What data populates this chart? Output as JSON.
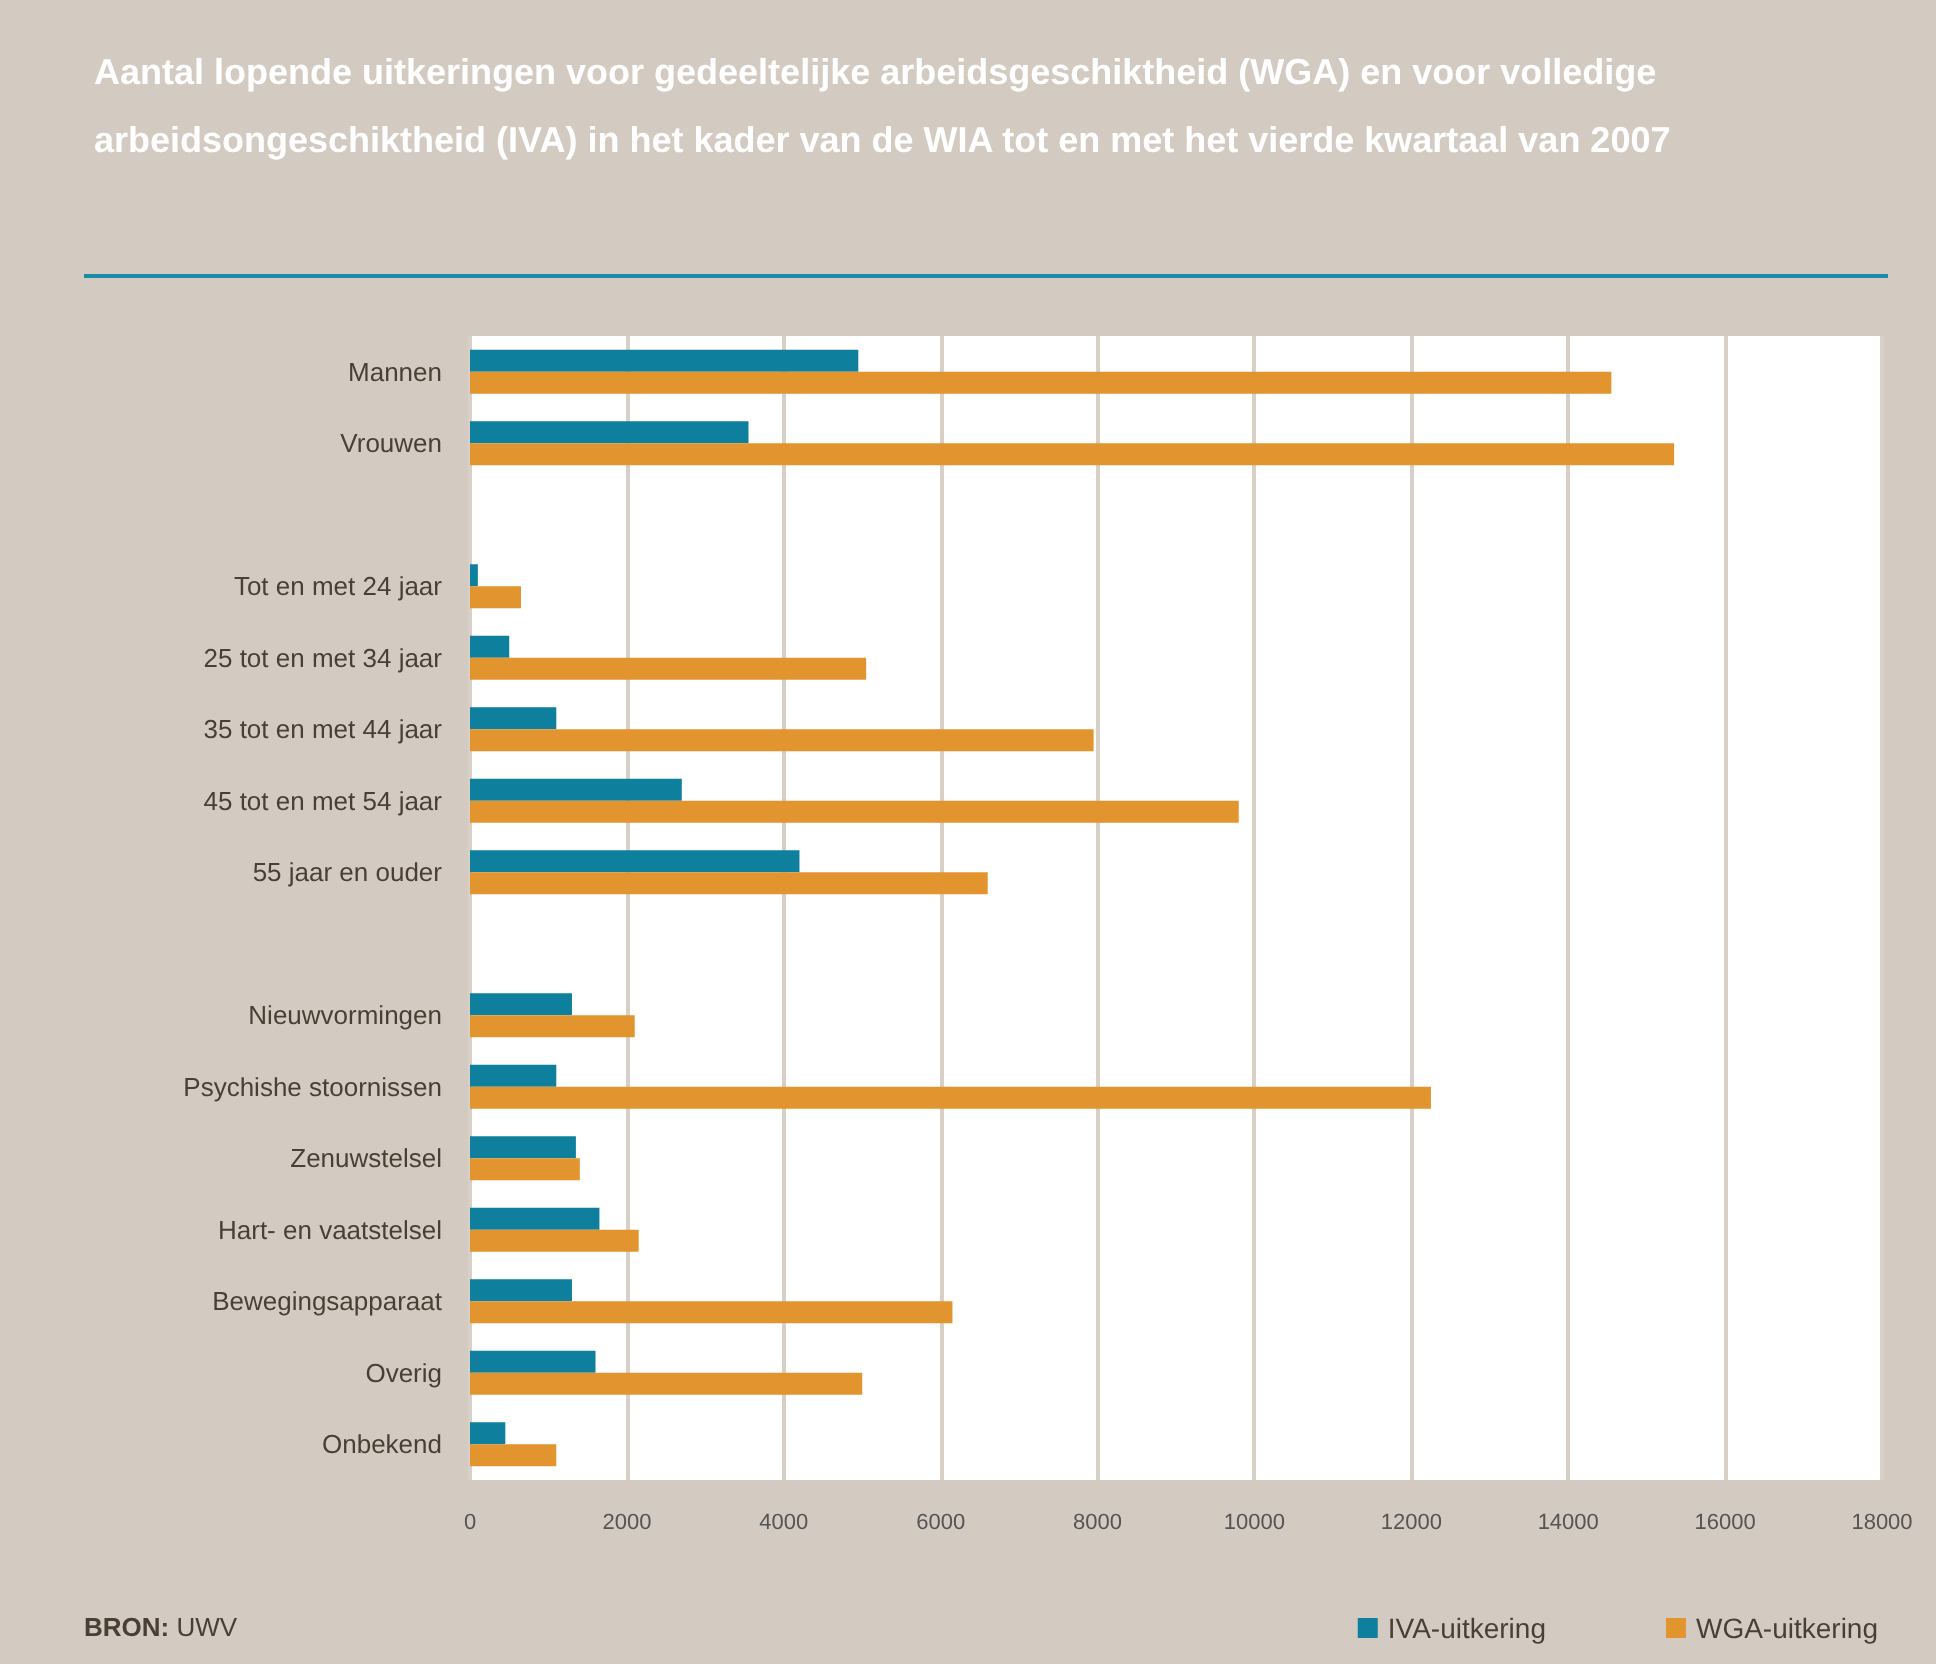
{
  "chart_data": {
    "type": "bar",
    "orientation": "horizontal",
    "title": "Aantal lopende uitkeringen voor gedeeltelijke arbeidsgeschiktheid (WGA) en voor volledige arbeidsongeschiktheid (IVA) in het kader van de WIA tot en met het vierde kwartaal van 2007",
    "categories": [
      "Mannen",
      "Vrouwen",
      null,
      "Tot en met 24 jaar",
      "25 tot en met 34 jaar",
      "35 tot en met 44 jaar",
      "45 tot en met 54 jaar",
      "55 jaar en ouder",
      null,
      "Nieuwvormingen",
      "Psychishe stoornissen",
      "Zenuwstelsel",
      "Hart- en vaatstelsel",
      "Bewegingsapparaat",
      "Overig",
      "Onbekend"
    ],
    "series": [
      {
        "name": "IVA-uitkering",
        "color": "#0e7f9c",
        "values": [
          4950,
          3550,
          null,
          100,
          500,
          1100,
          2700,
          4200,
          null,
          1300,
          1100,
          1350,
          1650,
          1300,
          1600,
          450
        ]
      },
      {
        "name": "WGA-uitkering",
        "color": "#e2952f",
        "values": [
          14550,
          15350,
          null,
          650,
          5050,
          7950,
          9800,
          6600,
          null,
          2100,
          12250,
          1400,
          2150,
          6150,
          5000,
          1100
        ]
      }
    ],
    "xlim": [
      0,
      18000
    ],
    "xticks": [
      0,
      2000,
      4000,
      6000,
      8000,
      10000,
      12000,
      14000,
      16000,
      18000
    ],
    "grid": "x",
    "legend": "bottom right",
    "annotations": [
      "BRON: UWV"
    ]
  }
}
